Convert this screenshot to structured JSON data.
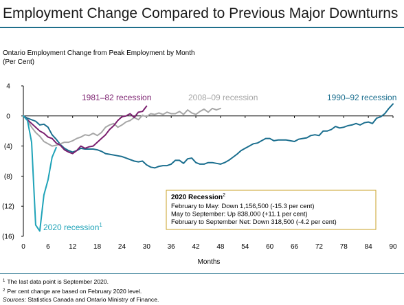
{
  "title": "Employment Change Compared to Previous Major Downturns",
  "subtitle_line1": "Ontario Employment Change from Peak Employment by Month",
  "subtitle_line2": "(Per Cent)",
  "notes": {
    "note1_marker": "1",
    "note1_text": "The last data point is September 2020.",
    "note2_marker": "2",
    "note2_text": "Per cent change are based on February 2020 level.",
    "sources_label": "Sources:",
    "sources_text": "Statistics Canada and Ontario Ministry of Finance."
  },
  "colors": {
    "title_rule": "#1f6f8b",
    "recession_2020": "#1fa3b8",
    "recession_1981_82": "#7a1f6e",
    "recession_2008_09": "#a6a6a6",
    "recession_1990_92": "#1a6e8e",
    "infobox_border": "#c9a227"
  },
  "chart_data": {
    "type": "line",
    "title": "Ontario Employment Change from Peak Employment by Month",
    "xlabel": "Months",
    "ylabel": "(Per Cent)",
    "xlim": [
      0,
      90
    ],
    "ylim": [
      -16,
      4
    ],
    "xticks": [
      "0",
      "6",
      "12",
      "18",
      "24",
      "30",
      "36",
      "42",
      "48",
      "54",
      "60",
      "66",
      "72",
      "78",
      "84",
      "90"
    ],
    "yticks": [
      "4",
      "0",
      "(4)",
      "(8)",
      "(12)",
      "(16)"
    ],
    "grid": false,
    "series": [
      {
        "name": "2020 recession",
        "label_sup": "1",
        "color": "#1fa3b8",
        "points": [
          [
            0,
            0
          ],
          [
            1,
            -0.6
          ],
          [
            2,
            -3.5
          ],
          [
            3,
            -14.5
          ],
          [
            4,
            -15.3
          ],
          [
            5,
            -10.5
          ],
          [
            6,
            -8.5
          ],
          [
            7,
            -5.5
          ],
          [
            8,
            -4.2
          ]
        ]
      },
      {
        "name": "1981–82 recession",
        "color": "#7a1f6e",
        "points": [
          [
            0,
            0
          ],
          [
            1,
            -0.5
          ],
          [
            2,
            -1.0
          ],
          [
            3,
            -1.5
          ],
          [
            4,
            -2.0
          ],
          [
            5,
            -2.3
          ],
          [
            6,
            -2.8
          ],
          [
            7,
            -3.0
          ],
          [
            8,
            -3.6
          ],
          [
            9,
            -3.9
          ],
          [
            10,
            -4.5
          ],
          [
            11,
            -4.8
          ],
          [
            12,
            -5.0
          ],
          [
            13,
            -4.6
          ],
          [
            14,
            -4.0
          ],
          [
            15,
            -4.3
          ],
          [
            16,
            -4.1
          ],
          [
            17,
            -4.0
          ],
          [
            18,
            -3.5
          ],
          [
            19,
            -3.0
          ],
          [
            20,
            -2.5
          ],
          [
            21,
            -1.8
          ],
          [
            22,
            -1.3
          ],
          [
            23,
            -0.6
          ],
          [
            24,
            -0.1
          ],
          [
            25,
            0.0
          ],
          [
            26,
            0.3
          ],
          [
            27,
            -0.2
          ],
          [
            28,
            0.5
          ],
          [
            29,
            0.6
          ],
          [
            30,
            1.3
          ]
        ]
      },
      {
        "name": "2008–09 recession",
        "color": "#a6a6a6",
        "points": [
          [
            0,
            0
          ],
          [
            1,
            -0.6
          ],
          [
            2,
            -1.5
          ],
          [
            3,
            -2.2
          ],
          [
            4,
            -2.7
          ],
          [
            5,
            -3.4
          ],
          [
            6,
            -3.7
          ],
          [
            7,
            -4.0
          ],
          [
            8,
            -3.9
          ],
          [
            9,
            -3.7
          ],
          [
            10,
            -3.5
          ],
          [
            11,
            -3.5
          ],
          [
            12,
            -3.3
          ],
          [
            13,
            -3.0
          ],
          [
            14,
            -2.8
          ],
          [
            15,
            -2.5
          ],
          [
            16,
            -2.6
          ],
          [
            17,
            -2.3
          ],
          [
            18,
            -2.6
          ],
          [
            19,
            -2.2
          ],
          [
            20,
            -1.5
          ],
          [
            21,
            -1.2
          ],
          [
            22,
            -1.0
          ],
          [
            23,
            -1.5
          ],
          [
            24,
            -1.2
          ],
          [
            25,
            -0.8
          ],
          [
            26,
            -0.6
          ],
          [
            27,
            -0.2
          ],
          [
            28,
            -0.5
          ],
          [
            29,
            0.1
          ],
          [
            30,
            -0.1
          ],
          [
            31,
            0.3
          ],
          [
            32,
            0.2
          ],
          [
            33,
            0.4
          ],
          [
            34,
            0.2
          ],
          [
            35,
            0.5
          ],
          [
            36,
            0.3
          ],
          [
            37,
            0.3
          ],
          [
            38,
            0.6
          ],
          [
            39,
            0.2
          ],
          [
            40,
            0.8
          ],
          [
            41,
            0.4
          ],
          [
            42,
            0.2
          ],
          [
            43,
            0.6
          ],
          [
            44,
            0.9
          ],
          [
            45,
            0.5
          ],
          [
            46,
            1.0
          ],
          [
            47,
            0.8
          ],
          [
            48,
            1.0
          ]
        ]
      },
      {
        "name": "1990–92 recession",
        "color": "#1a6e8e",
        "points": [
          [
            0,
            0
          ],
          [
            1,
            -0.3
          ],
          [
            2,
            -0.5
          ],
          [
            3,
            -0.7
          ],
          [
            4,
            -1.2
          ],
          [
            5,
            -1.1
          ],
          [
            6,
            -1.5
          ],
          [
            7,
            -2.5
          ],
          [
            8,
            -3.1
          ],
          [
            9,
            -3.8
          ],
          [
            10,
            -4.3
          ],
          [
            11,
            -4.6
          ],
          [
            12,
            -4.8
          ],
          [
            13,
            -4.6
          ],
          [
            14,
            -4.3
          ],
          [
            15,
            -4.4
          ],
          [
            16,
            -4.4
          ],
          [
            17,
            -4.4
          ],
          [
            18,
            -4.5
          ],
          [
            19,
            -4.7
          ],
          [
            20,
            -5.0
          ],
          [
            21,
            -5.1
          ],
          [
            22,
            -5.2
          ],
          [
            23,
            -5.3
          ],
          [
            24,
            -5.4
          ],
          [
            25,
            -5.6
          ],
          [
            26,
            -5.8
          ],
          [
            27,
            -6.0
          ],
          [
            28,
            -6.1
          ],
          [
            29,
            -6.0
          ],
          [
            30,
            -6.5
          ],
          [
            31,
            -6.8
          ],
          [
            32,
            -6.9
          ],
          [
            33,
            -6.7
          ],
          [
            34,
            -6.6
          ],
          [
            35,
            -6.6
          ],
          [
            36,
            -6.4
          ],
          [
            37,
            -5.9
          ],
          [
            38,
            -5.9
          ],
          [
            39,
            -6.3
          ],
          [
            40,
            -5.7
          ],
          [
            41,
            -5.6
          ],
          [
            42,
            -6.2
          ],
          [
            43,
            -6.4
          ],
          [
            44,
            -6.4
          ],
          [
            45,
            -6.2
          ],
          [
            46,
            -6.2
          ],
          [
            47,
            -6.3
          ],
          [
            48,
            -6.4
          ],
          [
            49,
            -6.2
          ],
          [
            50,
            -5.9
          ],
          [
            51,
            -5.5
          ],
          [
            52,
            -5.1
          ],
          [
            53,
            -4.6
          ],
          [
            54,
            -4.3
          ],
          [
            55,
            -4.0
          ],
          [
            56,
            -3.7
          ],
          [
            57,
            -3.6
          ],
          [
            58,
            -3.3
          ],
          [
            59,
            -3.0
          ],
          [
            60,
            -3.0
          ],
          [
            61,
            -3.3
          ],
          [
            62,
            -3.2
          ],
          [
            63,
            -3.2
          ],
          [
            64,
            -3.2
          ],
          [
            65,
            -3.3
          ],
          [
            66,
            -3.4
          ],
          [
            67,
            -3.1
          ],
          [
            68,
            -3.0
          ],
          [
            69,
            -2.9
          ],
          [
            70,
            -2.6
          ],
          [
            71,
            -2.5
          ],
          [
            72,
            -2.6
          ],
          [
            73,
            -2.0
          ],
          [
            74,
            -2.0
          ],
          [
            75,
            -1.8
          ],
          [
            76,
            -1.4
          ],
          [
            77,
            -1.6
          ],
          [
            78,
            -1.5
          ],
          [
            79,
            -1.3
          ],
          [
            80,
            -1.2
          ],
          [
            81,
            -1.0
          ],
          [
            82,
            -1.2
          ],
          [
            83,
            -0.9
          ],
          [
            84,
            -0.8
          ],
          [
            85,
            -1.0
          ],
          [
            86,
            -0.3
          ],
          [
            87,
            -0.1
          ],
          [
            88,
            0.3
          ],
          [
            89,
            1.0
          ],
          [
            90,
            1.6
          ]
        ]
      }
    ],
    "series_labels": {
      "r1981": "1981–82 recession",
      "r2008": "2008–09 recession",
      "r1990": "1990–92 recession",
      "r2020": "2020 recession",
      "r2020_sup": "1"
    },
    "annotation": {
      "heading": "2020 Recession",
      "heading_sup": "2",
      "lines": [
        "February to May: Down 1,156,500 (-15.3 per cent)",
        "May to September:  Up 838,000 (+11.1 per cent)",
        "February to September Net: Down 318,500 (-4.2 per cent)"
      ]
    }
  }
}
